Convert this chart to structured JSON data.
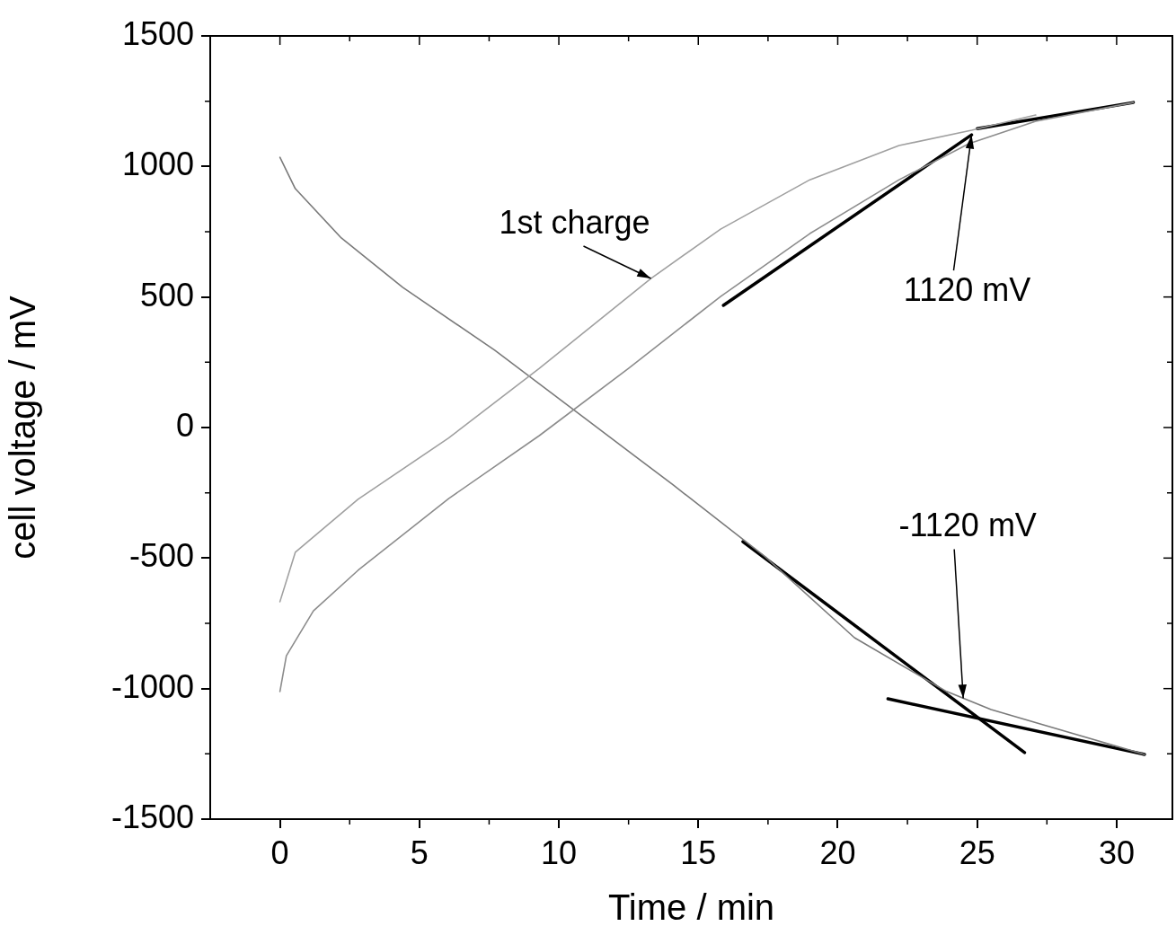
{
  "chart_data": {
    "type": "line",
    "xlabel": "Time / min",
    "ylabel": "cell voltage / mV",
    "xlim": [
      -2.5,
      32
    ],
    "ylim": [
      -1500,
      1500
    ],
    "xticks": [
      0,
      5,
      10,
      15,
      20,
      25,
      30
    ],
    "yticks": [
      -1500,
      -1000,
      -500,
      0,
      500,
      1000,
      1500
    ],
    "grid": false,
    "legend": false,
    "marker": "none",
    "line_style": "solid",
    "series": [
      {
        "color": "#a0a0a0",
        "x": [
          0,
          0.55,
          2.8,
          6.05,
          9.3,
          13.3,
          15.8,
          19,
          22.2,
          24.8,
          27.1
        ],
        "values": [
          -667,
          -478,
          -275,
          -40,
          227,
          571,
          760,
          949,
          1080,
          1139,
          1197
        ]
      },
      {
        "color": "#8c8c8c",
        "x": [
          0,
          0.23,
          1.2,
          2.8,
          6.05,
          9.3,
          12.5,
          15.8,
          19,
          22.2,
          24.7,
          27.1,
          30.6
        ],
        "values": [
          -1011,
          -874,
          -702,
          -547,
          -272,
          -31,
          227,
          502,
          743,
          949,
          1087,
          1173,
          1245
        ]
      },
      {
        "color": "#7a7a7a",
        "x": [
          0,
          0.55,
          2.2,
          4.4,
          7.7,
          10.9,
          14.1,
          17.4,
          20.6,
          23.9,
          25.5,
          27.7,
          31
        ],
        "values": [
          1035,
          915,
          726,
          537,
          296,
          38,
          -220,
          -495,
          -805,
          -1011,
          -1080,
          -1149,
          -1252
        ]
      },
      {
        "color": "#000000",
        "x": [
          15.9,
          24.8
        ],
        "values": [
          468,
          1121
        ]
      },
      {
        "color": "#000000",
        "x": [
          25,
          30.6
        ],
        "values": [
          1145,
          1245
        ]
      },
      {
        "color": "#000000",
        "x": [
          16.6,
          26.7
        ],
        "values": [
          -437,
          -1245
        ]
      },
      {
        "color": "#000000",
        "x": [
          21.8,
          31
        ],
        "values": [
          -1039,
          -1252
        ]
      }
    ],
    "annotations": [
      {
        "text": "1st charge",
        "x": 13.3,
        "y": 571
      },
      {
        "text": "1120 mV",
        "x": 24.8,
        "y": 1121
      },
      {
        "text": "-1120 mV",
        "x": 24.5,
        "y": -1037
      }
    ]
  }
}
